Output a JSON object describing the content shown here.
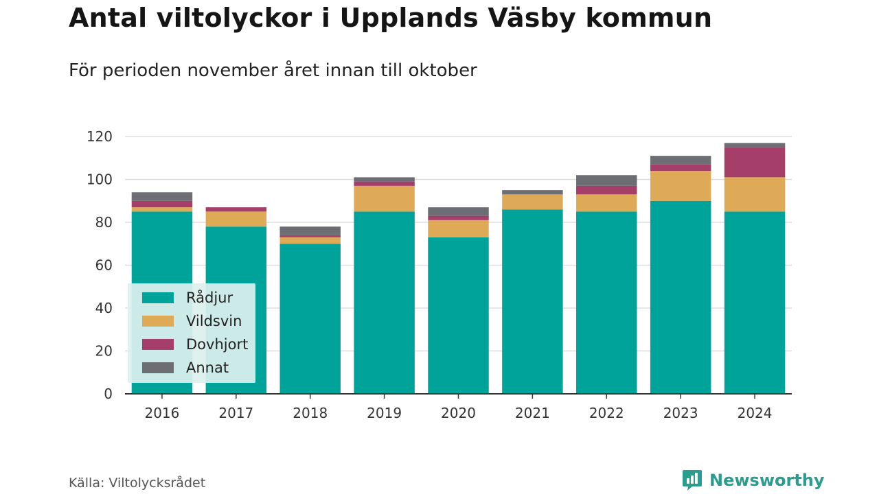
{
  "header": {
    "title": "Antal viltolyckor i Upplands Väsby kommun",
    "subtitle": "För perioden november året innan till oktober"
  },
  "footer": {
    "source": "Källa: Viltolycksrådet",
    "brand": "Newsworthy"
  },
  "colors": {
    "Rådjur": "#00a39a",
    "Vildsvin": "#dfaa58",
    "Dovhjort": "#a53f6a",
    "Annat": "#6d6d74",
    "brand": "#2a9d8f",
    "grid": "#dddddd",
    "axis": "#333333"
  },
  "legend": {
    "items": [
      {
        "label": "Rådjur",
        "color": "#00a39a"
      },
      {
        "label": "Vildsvin",
        "color": "#dfaa58"
      },
      {
        "label": "Dovhjort",
        "color": "#a53f6a"
      },
      {
        "label": "Annat",
        "color": "#6d6d74"
      }
    ],
    "placement": "bottom-left"
  },
  "chart_data": {
    "type": "bar",
    "stacked": true,
    "title": "Antal viltolyckor i Upplands Väsby kommun",
    "subtitle": "För perioden november året innan till oktober",
    "categories": [
      "2016",
      "2017",
      "2018",
      "2019",
      "2020",
      "2021",
      "2022",
      "2023",
      "2024"
    ],
    "series": [
      {
        "name": "Rådjur",
        "values": [
          85,
          78,
          70,
          85,
          73,
          86,
          85,
          90,
          85
        ]
      },
      {
        "name": "Vildsvin",
        "values": [
          2,
          7,
          3,
          12,
          8,
          7,
          8,
          14,
          16
        ]
      },
      {
        "name": "Dovhjort",
        "values": [
          3,
          2,
          1,
          2,
          2,
          0,
          4,
          3,
          14
        ]
      },
      {
        "name": "Annat",
        "values": [
          4,
          0,
          4,
          2,
          4,
          2,
          5,
          4,
          2
        ]
      }
    ],
    "yticks": [
      0,
      20,
      40,
      60,
      80,
      100,
      120
    ],
    "ylim": [
      0,
      120
    ],
    "xlabel": "",
    "ylabel": "",
    "grid": true,
    "legend_position": "bottom-left"
  }
}
